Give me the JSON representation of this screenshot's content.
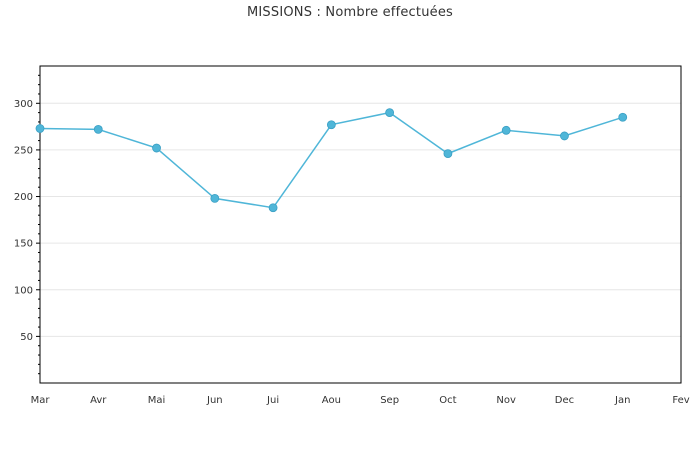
{
  "chart_data": {
    "type": "line",
    "title": "MISSIONS : Nombre effectuées",
    "xlabel": "",
    "ylabel": "",
    "categories": [
      "Mar",
      "Avr",
      "Mai",
      "Jun",
      "Jui",
      "Aou",
      "Sep",
      "Oct",
      "Nov",
      "Dec",
      "Jan",
      "Fev"
    ],
    "series": [
      {
        "values": [
          273,
          272,
          252,
          198,
          188,
          277,
          290,
          246,
          271,
          265,
          285,
          null
        ]
      }
    ],
    "ylim": [
      0,
      340
    ],
    "yticks": [
      50,
      100,
      150,
      200,
      250,
      300
    ],
    "grid": true,
    "colors": {
      "line": "#4FB6D8",
      "marker": "#4FB6D8",
      "grid": "#E6E6E6",
      "axis": "#000000",
      "text": "#333333"
    }
  }
}
